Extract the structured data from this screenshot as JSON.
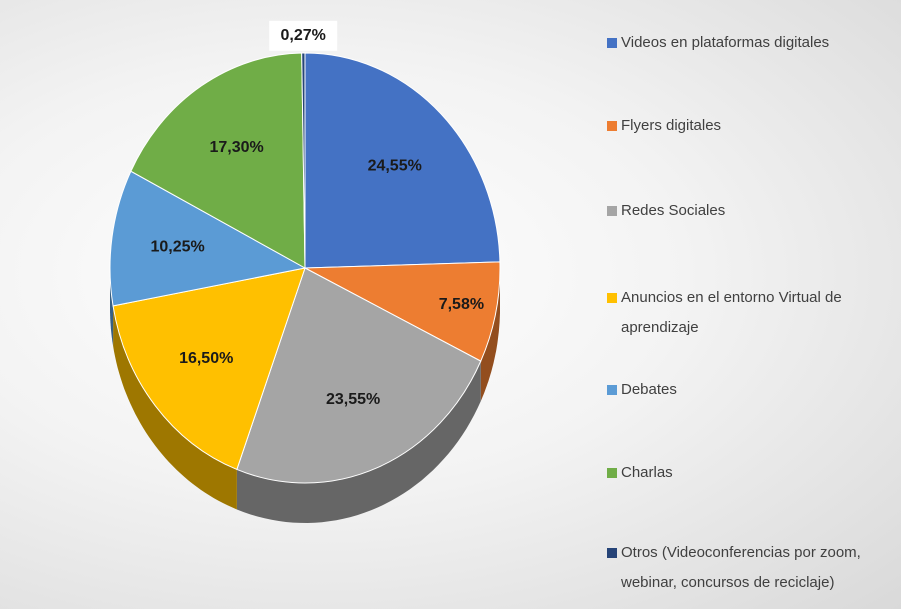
{
  "chart_data": {
    "type": "pie",
    "categories": [
      "Videos en plataformas digitales",
      "Flyers digitales",
      "Redes Sociales",
      "Anuncios en el entorno Virtual de aprendizaje",
      "Debates",
      "Charlas",
      "Otros (Videoconferencias por zoom, webinar, concursos de reciclaje)"
    ],
    "values": [
      24.55,
      7.58,
      23.55,
      16.5,
      10.25,
      17.3,
      0.27
    ],
    "value_labels": [
      "24,55%",
      "7,58%",
      "23,55%",
      "16,50%",
      "10,25%",
      "17,30%",
      "0,27%"
    ],
    "colors": [
      "#4472c4",
      "#ed7d31",
      "#a5a5a5",
      "#ffc000",
      "#5b9bd5",
      "#70ad47",
      "#264478"
    ],
    "legend": "right"
  }
}
